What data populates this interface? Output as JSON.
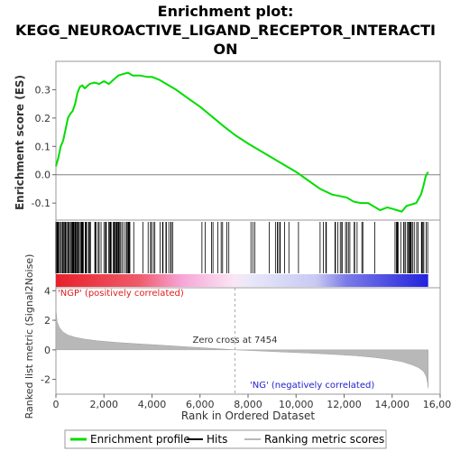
{
  "title_line1": "Enrichment plot:",
  "title_line2": "KEGG_NEUROACTIVE_LIGAND_RECEPTOR_INTERACTI",
  "title_line3": "ON",
  "chart_data": [
    {
      "type": "line",
      "panel": "enrichment-profile",
      "ylabel": "Enrichment score (ES)",
      "ylim": [
        -0.16,
        0.4
      ],
      "yticks": [
        "0.3",
        "0.2",
        "0.1",
        "0.0",
        "-0.1"
      ],
      "ytick_values": [
        0.3,
        0.2,
        0.1,
        0.0,
        -0.1
      ],
      "series": [
        {
          "name": "Enrichment profile",
          "color": "#00dd00",
          "x": [
            0,
            100,
            200,
            300,
            400,
            500,
            600,
            700,
            800,
            900,
            1000,
            1100,
            1200,
            1400,
            1600,
            1800,
            2000,
            2200,
            2400,
            2600,
            2800,
            3000,
            3200,
            3500,
            3800,
            4000,
            4300,
            4600,
            5000,
            5500,
            6000,
            6500,
            7000,
            7454,
            8000,
            8500,
            9000,
            9500,
            10000,
            10500,
            11000,
            11500,
            11800,
            12100,
            12400,
            12700,
            13000,
            13300,
            13500,
            13800,
            14000,
            14200,
            14400,
            14600,
            14800,
            15000,
            15200,
            15300,
            15400,
            15500
          ],
          "y": [
            0.03,
            0.06,
            0.1,
            0.12,
            0.16,
            0.2,
            0.215,
            0.225,
            0.25,
            0.29,
            0.31,
            0.315,
            0.305,
            0.32,
            0.325,
            0.32,
            0.33,
            0.32,
            0.335,
            0.35,
            0.355,
            0.36,
            0.35,
            0.35,
            0.345,
            0.345,
            0.335,
            0.32,
            0.3,
            0.27,
            0.24,
            0.205,
            0.17,
            0.14,
            0.11,
            0.085,
            0.06,
            0.035,
            0.01,
            -0.02,
            -0.05,
            -0.07,
            -0.075,
            -0.08,
            -0.095,
            -0.1,
            -0.1,
            -0.115,
            -0.125,
            -0.115,
            -0.12,
            -0.125,
            -0.13,
            -0.11,
            -0.105,
            -0.1,
            -0.07,
            -0.04,
            -0.005,
            0.01
          ]
        }
      ]
    },
    {
      "type": "line",
      "panel": "ranked-list-metric",
      "xlabel": "Rank in Ordered Dataset",
      "ylabel": "Ranked list metric (Signal2Noise)",
      "xlim": [
        0,
        16000
      ],
      "ylim": [
        -3.0,
        4.2
      ],
      "xticks": [
        "0",
        "2,000",
        "4,000",
        "6,000",
        "8,000",
        "10,000",
        "12,000",
        "14,000",
        "16,000"
      ],
      "xtick_values": [
        0,
        2000,
        4000,
        6000,
        8000,
        10000,
        12000,
        14000,
        16000
      ],
      "yticks": [
        "4",
        "2",
        "0",
        "-2"
      ],
      "ytick_values": [
        4,
        2,
        0,
        -2
      ],
      "series": [
        {
          "name": "Ranking metric scores",
          "color": "#b8b8b8",
          "x": [
            0,
            50,
            150,
            300,
            500,
            800,
            1200,
            1700,
            2500,
            3500,
            4500,
            5500,
            6500,
            7454,
            8500,
            9500,
            10500,
            11500,
            12500,
            13300,
            13900,
            14400,
            14800,
            15100,
            15300,
            15420,
            15480,
            15500
          ],
          "y": [
            2.8,
            1.9,
            1.5,
            1.2,
            1.0,
            0.85,
            0.72,
            0.62,
            0.5,
            0.4,
            0.3,
            0.2,
            0.1,
            0.0,
            -0.08,
            -0.15,
            -0.22,
            -0.3,
            -0.4,
            -0.52,
            -0.65,
            -0.8,
            -1.0,
            -1.2,
            -1.45,
            -1.8,
            -2.3,
            -2.6
          ]
        }
      ],
      "annotations": [
        "'NGP' (positively correlated)",
        "Zero cross at 7454",
        "'NG' (negatively correlated)"
      ],
      "zero_cross": 7454
    }
  ],
  "hits_ranges": [
    [
      0,
      1300,
      0.55
    ],
    [
      1300,
      3300,
      0.35
    ],
    [
      3300,
      4900,
      0.18
    ],
    [
      4900,
      8000,
      0.08
    ],
    [
      8000,
      11000,
      0.03
    ],
    [
      11000,
      12700,
      0.16
    ],
    [
      12700,
      14000,
      0.09
    ],
    [
      14000,
      15500,
      0.28
    ]
  ],
  "legend": [
    {
      "label": "Enrichment profile",
      "color": "#00dd00"
    },
    {
      "label": "Hits",
      "color": "#000000"
    },
    {
      "label": "Ranking metric scores",
      "color": "#b8b8b8"
    }
  ],
  "colors": {
    "positive": "#e8202a",
    "pink": "#f6a6d8",
    "lavender": "#c8c8f4",
    "negative": "#2222dd"
  }
}
